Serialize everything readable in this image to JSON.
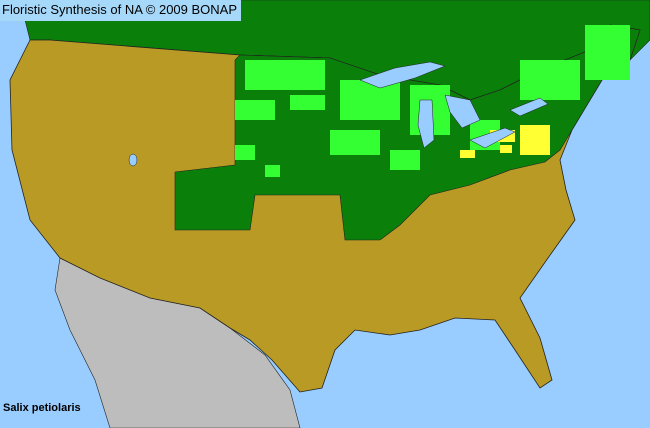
{
  "header": {
    "title": "Floristic Synthesis of NA © 2009 BONAP"
  },
  "species": {
    "name": "Salix petiolaris"
  },
  "colors": {
    "water": "#99ccff",
    "present_state": "#0a800a",
    "present_county": "#33ff33",
    "rare_county": "#ffff33",
    "absent_state": "#b89a24",
    "outside_region": "#bdbdbd"
  }
}
